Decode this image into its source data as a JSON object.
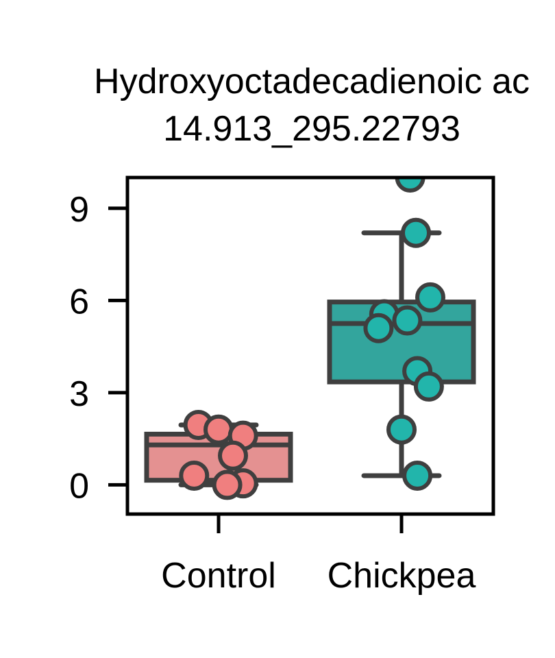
{
  "chart_data": {
    "type": "box",
    "title_lines": [
      "Hydroxyoctadecadienoic ac",
      "14.913_295.22793"
    ],
    "xlabel": "",
    "ylabel": "",
    "categories": [
      "Control",
      "Chickpea"
    ],
    "yticks": [
      0,
      3,
      6,
      9
    ],
    "ytick_labels": [
      "0",
      "3",
      "6",
      "9"
    ],
    "ylim": [
      -0.95,
      10.0
    ],
    "grid": false,
    "boxes": [
      {
        "category": "Control",
        "whisker_low": 0.0,
        "q1": 0.15,
        "median": 1.3,
        "q3": 1.65,
        "whisker_high": 1.95,
        "fill": "#e49191",
        "point_color": "#f07f7f"
      },
      {
        "category": "Chickpea",
        "whisker_low": 0.3,
        "q1": 3.35,
        "median": 5.25,
        "q3": 5.95,
        "whisker_high": 8.2,
        "fill": "#33a59d",
        "point_color": "#22b5ab"
      }
    ],
    "points": [
      {
        "category": "Control",
        "y": 1.95,
        "jitter": -0.14
      },
      {
        "category": "Control",
        "y": 1.8,
        "jitter": 0.0
      },
      {
        "category": "Control",
        "y": 1.6,
        "jitter": 0.17
      },
      {
        "category": "Control",
        "y": 0.95,
        "jitter": 0.1
      },
      {
        "category": "Control",
        "y": 0.3,
        "jitter": -0.17
      },
      {
        "category": "Control",
        "y": 0.05,
        "jitter": 0.17
      },
      {
        "category": "Control",
        "y": 0.0,
        "jitter": 0.06
      },
      {
        "category": "Chickpea",
        "y": 10.0,
        "jitter": 0.06
      },
      {
        "category": "Chickpea",
        "y": 8.2,
        "jitter": 0.1
      },
      {
        "category": "Chickpea",
        "y": 6.1,
        "jitter": 0.2
      },
      {
        "category": "Chickpea",
        "y": 5.55,
        "jitter": -0.12
      },
      {
        "category": "Chickpea",
        "y": 5.35,
        "jitter": 0.04
      },
      {
        "category": "Chickpea",
        "y": 5.1,
        "jitter": -0.16
      },
      {
        "category": "Chickpea",
        "y": 3.7,
        "jitter": 0.11
      },
      {
        "category": "Chickpea",
        "y": 3.2,
        "jitter": 0.19
      },
      {
        "category": "Chickpea",
        "y": 1.8,
        "jitter": 0.0
      },
      {
        "category": "Chickpea",
        "y": 0.3,
        "jitter": 0.11
      }
    ],
    "box_edge_color": "#3f3f3f",
    "axis_color": "#000000"
  }
}
